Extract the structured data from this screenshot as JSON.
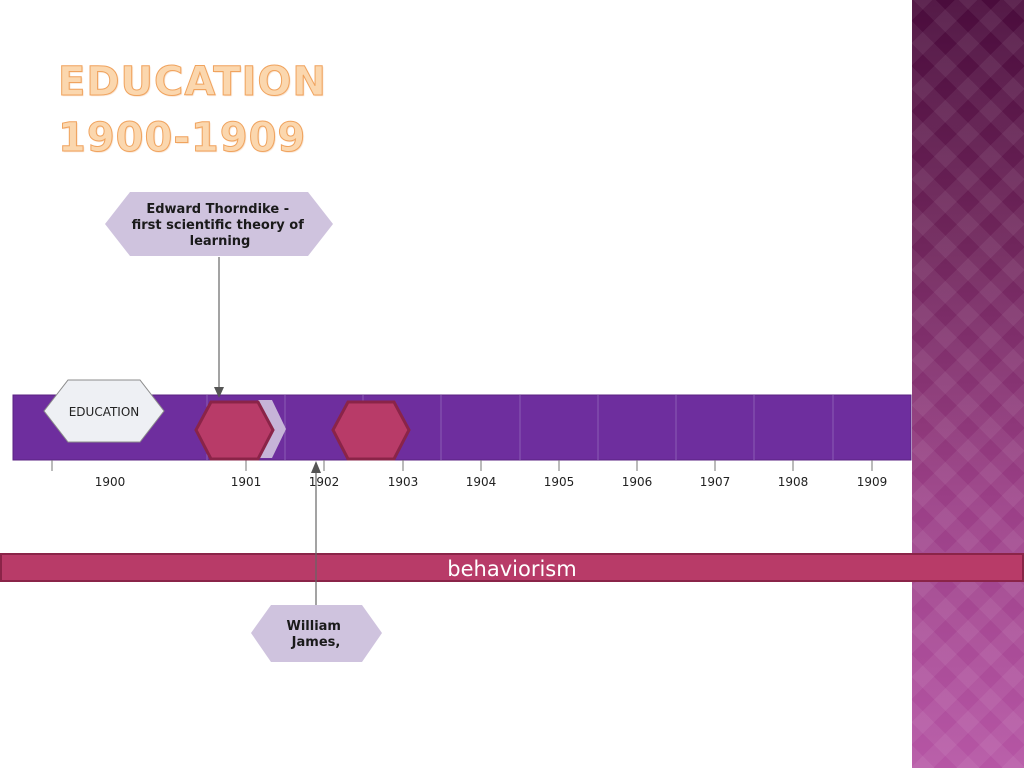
{
  "title": {
    "line1": "EDUCATION",
    "line2": "1900-1909"
  },
  "timeline": {
    "bar_color": "#6e2e9e",
    "years": [
      "1900",
      "1901",
      "1902",
      "1903",
      "1904",
      "1905",
      "1906",
      "1907",
      "1908",
      "1909"
    ],
    "start_marker_label": "EDUCATION",
    "event_marker_color": "#b83b68",
    "callouts": [
      {
        "text_lines": [
          "Edward Thorndike -",
          "first scientific theory of",
          "learning"
        ],
        "year": 1901
      },
      {
        "text_lines": [
          "William",
          "James,"
        ],
        "year": 1902
      }
    ],
    "era_band": {
      "label": "behaviorism",
      "color": "#b83b68"
    }
  },
  "colors": {
    "callout_fill": "#cfc3de",
    "side_panel": "#8a3478",
    "title": "#fbd7ae"
  }
}
